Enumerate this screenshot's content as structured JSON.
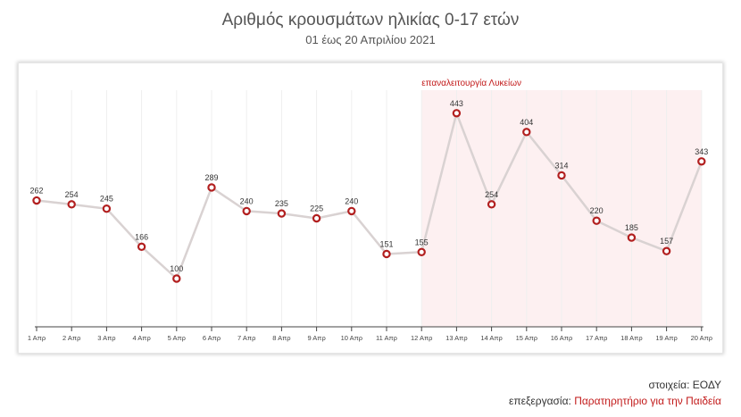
{
  "title": "Αριθμός κρουσμάτων ηλικίας 0-17 ετών",
  "subtitle": "01 έως 20 Απριλίου 2021",
  "chart_data": {
    "type": "line",
    "categories": [
      "1 Απρ",
      "2 Απρ",
      "3 Απρ",
      "4 Απρ",
      "5 Απρ",
      "6 Απρ",
      "7 Απρ",
      "8 Απρ",
      "9 Απρ",
      "10 Απρ",
      "11 Απρ",
      "12 Απρ",
      "13 Απρ",
      "14 Απρ",
      "15 Απρ",
      "16 Απρ",
      "17 Απρ",
      "18 Απρ",
      "19 Απρ",
      "20 Απρ"
    ],
    "values": [
      262,
      254,
      245,
      166,
      100,
      289,
      240,
      235,
      225,
      240,
      151,
      155,
      443,
      254,
      404,
      314,
      220,
      185,
      157,
      343
    ],
    "ylim": [
      0,
      500
    ],
    "grid": "vertical",
    "highlight_band": {
      "from": "12 Απρ",
      "to": "20 Απρ",
      "label": "επαναλειτουργία Λυκείων"
    },
    "colors": {
      "line": "#d9d2d2",
      "marker": "#b21f1f",
      "band": "#fdf0f1",
      "band_label": "#c21a1a"
    }
  },
  "credits": {
    "source": "στοιχεία: ΕΟΔΥ",
    "processing_label": "επεξεργασία: ",
    "processing_org": "Παρατηρητήριο για την Παιδεία"
  }
}
